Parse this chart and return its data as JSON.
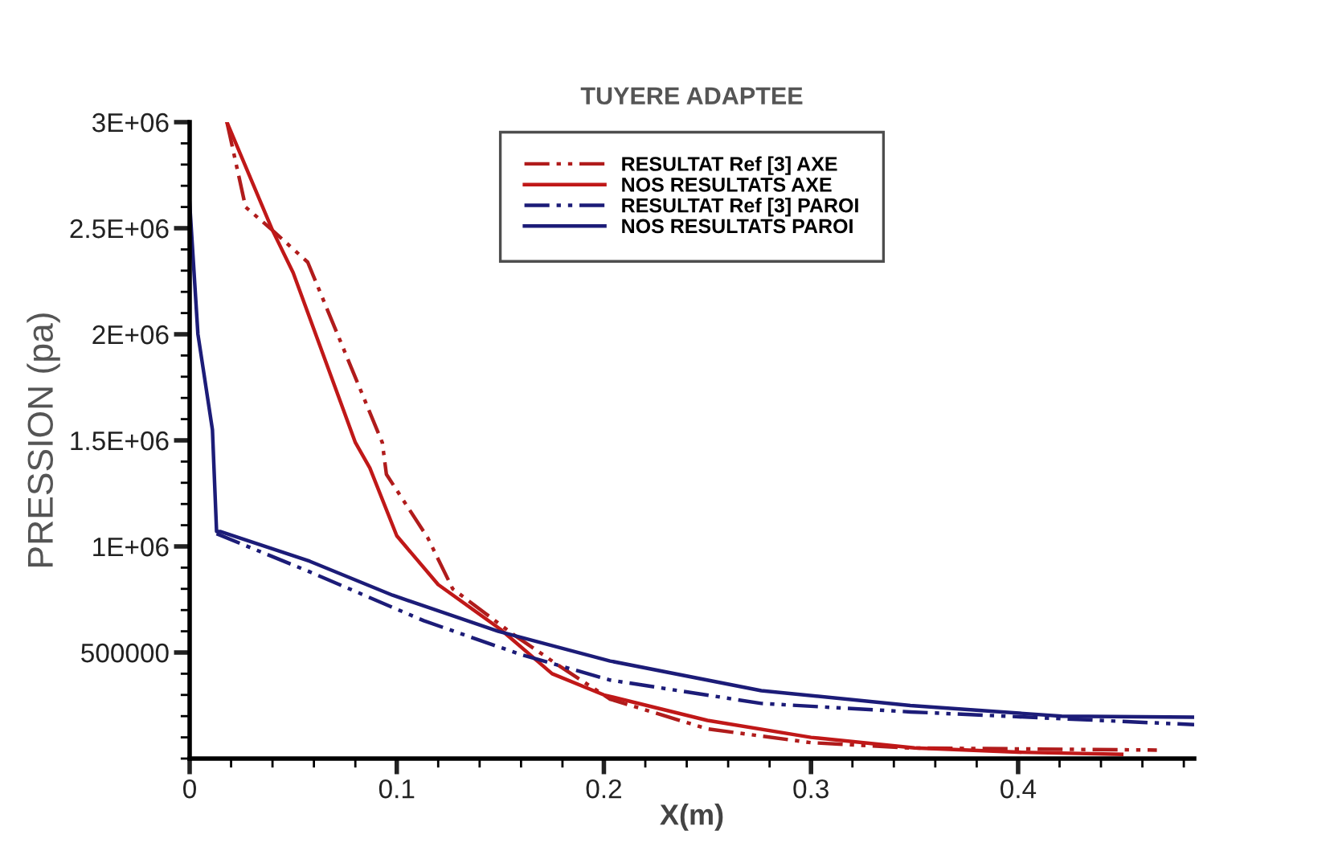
{
  "chart_data": {
    "type": "line",
    "title": "TUYERE ADAPTEE",
    "xlabel": "X(m)",
    "ylabel": "PRESSION (pa)",
    "xlim": [
      0,
      0.485
    ],
    "ylim": [
      0,
      3000000
    ],
    "xticks": [
      0,
      0.1,
      0.2,
      0.3,
      0.4
    ],
    "yticks": [
      {
        "value": 500000,
        "label": "500000"
      },
      {
        "value": 1000000,
        "label": "1E+06"
      },
      {
        "value": 1500000,
        "label": "1.5E+06"
      },
      {
        "value": 2000000,
        "label": "2E+06"
      },
      {
        "value": 2500000,
        "label": "2.5E+06"
      },
      {
        "value": 3000000,
        "label": "3E+06"
      }
    ],
    "grid": false,
    "legend": "top",
    "marker": "none",
    "series": [
      {
        "name": "RESULTAT Ref [3] AXE",
        "color": "#b01c1c",
        "line_style": "dashed",
        "x": [
          0.018,
          0.027,
          0.04,
          0.057,
          0.093,
          0.095,
          0.115,
          0.127,
          0.157,
          0.178,
          0.203,
          0.25,
          0.3,
          0.348,
          0.467
        ],
        "values": [
          3000000,
          2600000,
          2490000,
          2340000,
          1490000,
          1340000,
          1040000,
          800000,
          580000,
          440000,
          280000,
          140000,
          75000,
          50000,
          40000
        ]
      },
      {
        "name": "NOS RESULTATS AXE",
        "color": "#c01818",
        "line_style": "solid",
        "x": [
          0.018,
          0.04,
          0.05,
          0.08,
          0.087,
          0.1,
          0.12,
          0.15,
          0.175,
          0.2,
          0.25,
          0.3,
          0.35,
          0.4,
          0.45
        ],
        "values": [
          3000000,
          2490000,
          2290000,
          1490000,
          1370000,
          1050000,
          820000,
          610000,
          400000,
          300000,
          180000,
          100000,
          50000,
          30000,
          20000
        ]
      },
      {
        "name": "RESULTAT Ref [3] PAROI",
        "color": "#1c1c78",
        "line_style": "dashed",
        "x": [
          0.013,
          0.058,
          0.113,
          0.16,
          0.203,
          0.276,
          0.348,
          0.485
        ],
        "values": [
          1060000,
          880000,
          650000,
          490000,
          370000,
          260000,
          220000,
          160000
        ]
      },
      {
        "name": "NOS RESULTATS PAROI",
        "color": "#1c1c78",
        "line_style": "solid",
        "x": [
          0,
          0.004,
          0.011,
          0.013,
          0.015,
          0.058,
          0.098,
          0.149,
          0.203,
          0.276,
          0.348,
          0.421,
          0.485
        ],
        "values": [
          2620000,
          2000000,
          1550000,
          1070000,
          1070000,
          930000,
          770000,
          600000,
          460000,
          320000,
          250000,
          200000,
          195000
        ]
      }
    ]
  }
}
